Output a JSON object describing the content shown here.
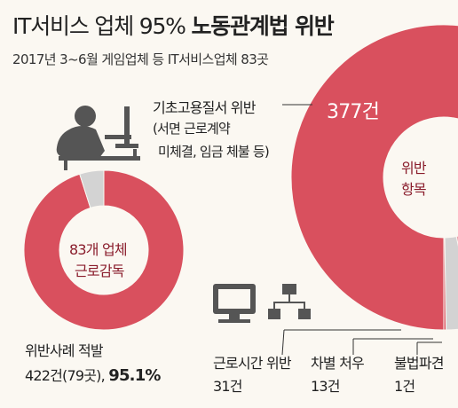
{
  "header": {
    "title_light": "IT서비스 업체 95%",
    "title_bold": "노동관계법 위반",
    "subtitle": "2017년 3~6월 게임업체 등 IT서비스업체 83곳"
  },
  "colors": {
    "primary": "#d9505e",
    "light_pink": "#e7a2aa",
    "grey": "#d3d3d3",
    "inner_text": "#8a1d2c",
    "icon": "#555555"
  },
  "icons": [
    "person-at-computer-icon",
    "monitor-icon",
    "network-icon"
  ],
  "chart_data": [
    {
      "type": "pie",
      "name": "donut-inspection",
      "center_label": [
        "83개 업체",
        "근로감독"
      ],
      "slices": [
        {
          "label": "위반사례 적발",
          "value": 95.1
        },
        {
          "label": "",
          "value": 4.9
        }
      ],
      "caption": {
        "label": "위반사례 적발",
        "count": "422건(79곳),",
        "percent": "95.1%"
      }
    },
    {
      "type": "pie",
      "name": "donut-violation-items",
      "center_label": [
        "위반",
        "항목"
      ],
      "slices": [
        {
          "label": "기초고용질서 위반",
          "note": [
            "(서면 근로계약",
            "미체결, 임금 체불 등)"
          ],
          "value": 377,
          "value_label": "377건"
        },
        {
          "label": "근로시간 위반",
          "value": 31,
          "value_label": "31건"
        },
        {
          "label": "차별 처우",
          "value": 13,
          "value_label": "13건"
        },
        {
          "label": "불법파견",
          "value": 1,
          "value_label": "1건"
        }
      ]
    }
  ]
}
